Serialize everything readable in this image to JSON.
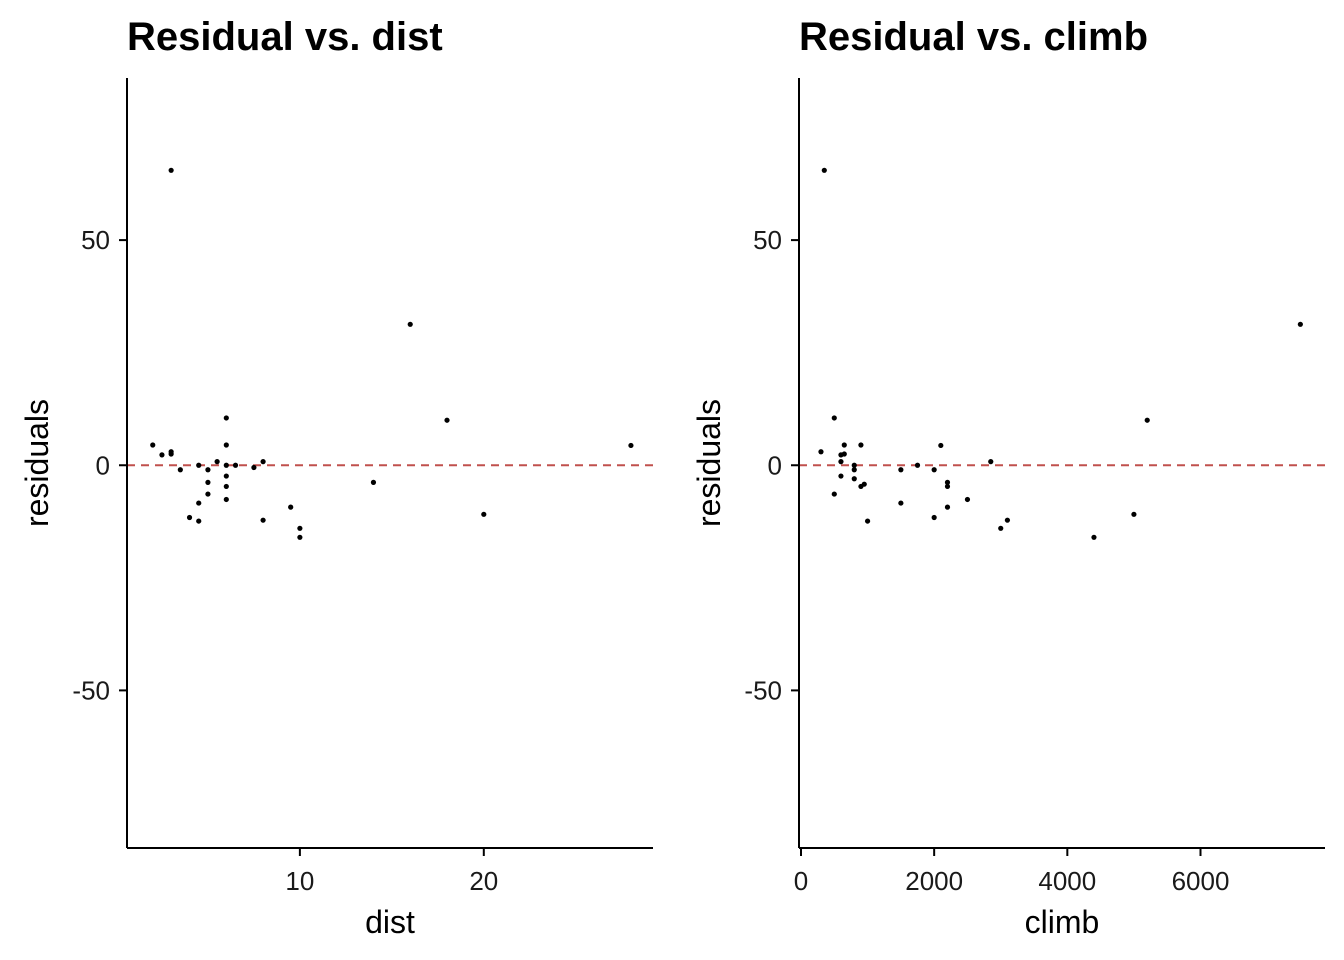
{
  "chart_data": [
    {
      "type": "scatter",
      "title": "Residual vs. dist",
      "xlabel": "dist",
      "ylabel": "residuals",
      "xlim": [
        0.6,
        29.2
      ],
      "ylim": [
        -85,
        86
      ],
      "xticks": [
        10,
        20
      ],
      "yticks": [
        -50,
        0,
        50
      ],
      "reference_line": {
        "y": 0,
        "style": "dashed",
        "color": "#c0504d"
      },
      "point_color": "#000000",
      "grid": false,
      "points": [
        {
          "x": 2,
          "y": 4.5
        },
        {
          "x": 2.5,
          "y": 2.3
        },
        {
          "x": 3,
          "y": 65.5
        },
        {
          "x": 3,
          "y": 3.0
        },
        {
          "x": 3,
          "y": 2.5
        },
        {
          "x": 3.5,
          "y": -1.0
        },
        {
          "x": 4,
          "y": -11.6
        },
        {
          "x": 4.5,
          "y": -12.4
        },
        {
          "x": 4.5,
          "y": -8.4
        },
        {
          "x": 4.5,
          "y": 0.0
        },
        {
          "x": 5,
          "y": -1.0
        },
        {
          "x": 5,
          "y": -3.8
        },
        {
          "x": 5,
          "y": -6.4
        },
        {
          "x": 5.5,
          "y": 0.8
        },
        {
          "x": 6,
          "y": 10.5
        },
        {
          "x": 6,
          "y": 4.5
        },
        {
          "x": 6,
          "y": 0.0
        },
        {
          "x": 6,
          "y": -2.4
        },
        {
          "x": 6,
          "y": -4.7
        },
        {
          "x": 6,
          "y": -7.6
        },
        {
          "x": 6.5,
          "y": 0.0
        },
        {
          "x": 7.5,
          "y": -0.5
        },
        {
          "x": 8,
          "y": 0.8
        },
        {
          "x": 8,
          "y": -12.2
        },
        {
          "x": 9.5,
          "y": -9.3
        },
        {
          "x": 10,
          "y": -14.0
        },
        {
          "x": 10,
          "y": -16.0
        },
        {
          "x": 14,
          "y": -3.8
        },
        {
          "x": 16,
          "y": 31.3
        },
        {
          "x": 18,
          "y": 10.0
        },
        {
          "x": 20,
          "y": -10.9
        },
        {
          "x": 28,
          "y": 4.4
        }
      ]
    },
    {
      "type": "scatter",
      "title": "Residual vs. climb",
      "xlabel": "climb",
      "ylabel": "residuals",
      "xlim": [
        -30,
        7870
      ],
      "ylim": [
        -85,
        86
      ],
      "xticks": [
        0,
        2000,
        4000,
        6000
      ],
      "yticks": [
        -50,
        0,
        50
      ],
      "reference_line": {
        "y": 0,
        "style": "dashed",
        "color": "#c0504d"
      },
      "point_color": "#000000",
      "grid": false,
      "points": [
        {
          "x": 300,
          "y": 3.0
        },
        {
          "x": 350,
          "y": 65.5
        },
        {
          "x": 500,
          "y": 10.5
        },
        {
          "x": 500,
          "y": -6.4
        },
        {
          "x": 600,
          "y": 2.3
        },
        {
          "x": 600,
          "y": 0.8
        },
        {
          "x": 600,
          "y": -2.4
        },
        {
          "x": 650,
          "y": 4.5
        },
        {
          "x": 650,
          "y": 2.5
        },
        {
          "x": 800,
          "y": 0.0
        },
        {
          "x": 800,
          "y": -1.0
        },
        {
          "x": 800,
          "y": -3.0
        },
        {
          "x": 900,
          "y": 4.5
        },
        {
          "x": 900,
          "y": -4.7
        },
        {
          "x": 950,
          "y": -4.2
        },
        {
          "x": 1000,
          "y": -12.4
        },
        {
          "x": 1500,
          "y": -1.0
        },
        {
          "x": 1500,
          "y": -8.4
        },
        {
          "x": 1750,
          "y": 0.0
        },
        {
          "x": 2000,
          "y": -1.0
        },
        {
          "x": 2000,
          "y": -11.6
        },
        {
          "x": 2100,
          "y": 4.4
        },
        {
          "x": 2200,
          "y": -3.8
        },
        {
          "x": 2200,
          "y": -4.7
        },
        {
          "x": 2200,
          "y": -9.3
        },
        {
          "x": 2500,
          "y": -7.6
        },
        {
          "x": 2850,
          "y": 0.8
        },
        {
          "x": 3000,
          "y": -14.0
        },
        {
          "x": 3100,
          "y": -12.2
        },
        {
          "x": 4400,
          "y": -16.0
        },
        {
          "x": 5000,
          "y": -10.9
        },
        {
          "x": 5200,
          "y": 10.0
        },
        {
          "x": 7500,
          "y": 31.3
        }
      ]
    }
  ]
}
